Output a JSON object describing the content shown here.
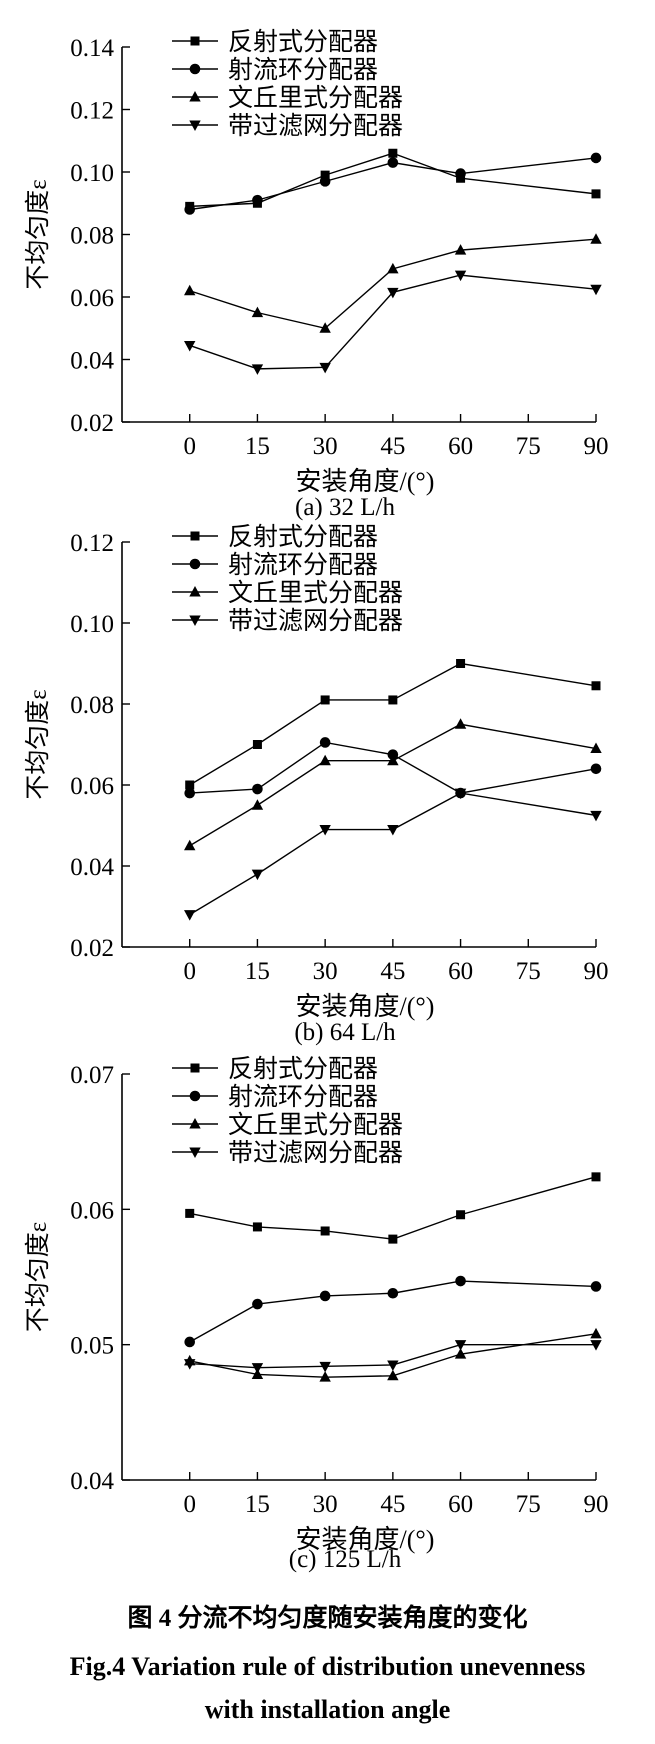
{
  "figure": {
    "caption_cn": "图 4 分流不均匀度随安装角度的变化",
    "caption_en_line1": "Fig.4 Variation rule of distribution unevenness",
    "caption_en_line2": "with installation angle"
  },
  "series_meta": [
    {
      "name": "反射式分配器",
      "marker": "square"
    },
    {
      "name": "射流环分配器",
      "marker": "circle"
    },
    {
      "name": "文丘里式分配器",
      "marker": "triangle-up"
    },
    {
      "name": "带过滤网分配器",
      "marker": "triangle-down"
    }
  ],
  "chart_data": [
    {
      "type": "line",
      "subtitle": "(a) 32 L/h",
      "xlabel": "安装角度/(°)",
      "ylabel": "不均匀度ε",
      "xlim": [
        -15,
        90
      ],
      "ylim": [
        0.02,
        0.14
      ],
      "xticks": [
        "0",
        "15",
        "30",
        "45",
        "60",
        "75",
        "90"
      ],
      "yticks": [
        "0.02",
        "0.04",
        "0.06",
        "0.08",
        "0.10",
        "0.12",
        "0.14"
      ],
      "legend": "top-left",
      "x": [
        0,
        15,
        30,
        45,
        60,
        90
      ],
      "series": [
        {
          "name": "反射式分配器",
          "values": [
            0.089,
            0.09,
            0.099,
            0.106,
            0.098,
            0.093
          ]
        },
        {
          "name": "射流环分配器",
          "values": [
            0.088,
            0.091,
            0.097,
            0.103,
            0.0995,
            0.1045
          ]
        },
        {
          "name": "文丘里式分配器",
          "values": [
            0.062,
            0.055,
            0.05,
            0.069,
            0.075,
            0.0785
          ]
        },
        {
          "name": "带过滤网分配器",
          "values": [
            0.0445,
            0.037,
            0.0375,
            0.0615,
            0.067,
            0.0625
          ]
        }
      ]
    },
    {
      "type": "line",
      "subtitle": "(b) 64 L/h",
      "xlabel": "安装角度/(°)",
      "ylabel": "不均匀度ε",
      "xlim": [
        -15,
        90
      ],
      "ylim": [
        0.02,
        0.12
      ],
      "xticks": [
        "0",
        "15",
        "30",
        "45",
        "60",
        "75",
        "90"
      ],
      "yticks": [
        "0.02",
        "0.04",
        "0.06",
        "0.08",
        "0.10",
        "0.12"
      ],
      "legend": "top-left",
      "x": [
        0,
        15,
        30,
        45,
        60,
        90
      ],
      "series": [
        {
          "name": "反射式分配器",
          "values": [
            0.06,
            0.07,
            0.081,
            0.081,
            0.09,
            0.0845
          ]
        },
        {
          "name": "射流环分配器",
          "values": [
            0.058,
            0.059,
            0.0705,
            0.0675,
            0.058,
            0.064
          ]
        },
        {
          "name": "文丘里式分配器",
          "values": [
            0.045,
            0.055,
            0.066,
            0.066,
            0.075,
            0.069
          ]
        },
        {
          "name": "带过滤网分配器",
          "values": [
            0.028,
            0.038,
            0.049,
            0.049,
            0.058,
            0.0525
          ]
        }
      ]
    },
    {
      "type": "line",
      "subtitle": "(c) 125 L/h",
      "xlabel": "安装角度/(°)",
      "ylabel": "不均匀度ε",
      "xlim": [
        -15,
        90
      ],
      "ylim": [
        0.04,
        0.07
      ],
      "xticks": [
        "0",
        "15",
        "30",
        "45",
        "60",
        "75",
        "90"
      ],
      "yticks": [
        "0.04",
        "0.05",
        "0.06",
        "0.07"
      ],
      "legend": "top-left",
      "x": [
        0,
        15,
        30,
        45,
        60,
        90
      ],
      "series": [
        {
          "name": "反射式分配器",
          "values": [
            0.0597,
            0.0587,
            0.0584,
            0.0578,
            0.0596,
            0.0624
          ]
        },
        {
          "name": "射流环分配器",
          "values": [
            0.0502,
            0.053,
            0.0536,
            0.0538,
            0.0547,
            0.0543
          ]
        },
        {
          "name": "文丘里式分配器",
          "values": [
            0.0488,
            0.0478,
            0.0476,
            0.0477,
            0.0493,
            0.0508
          ]
        },
        {
          "name": "带过滤网分配器",
          "values": [
            0.0486,
            0.0483,
            0.0484,
            0.0485,
            0.05,
            0.05
          ]
        }
      ]
    }
  ]
}
